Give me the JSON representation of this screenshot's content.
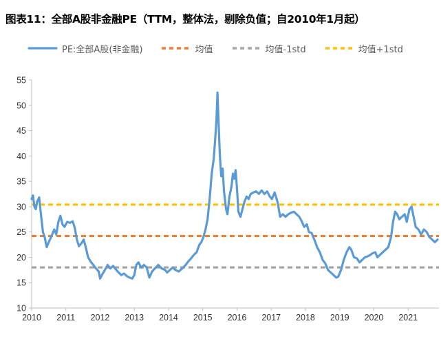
{
  "title": "图表11：全部A股非金融PE（TTM，整体法，剔除负值；自2010年1月起）",
  "legend": {
    "pe": "PE:全部A股(非金融)",
    "mean": "均值",
    "minus_std": "均值-1std",
    "plus_std": "均值+1std"
  },
  "colors": {
    "pe": "#5b9bd5",
    "mean": "#ed7d31",
    "minus_std": "#a5a5a5",
    "plus_std": "#ffc000"
  },
  "chart_data": {
    "type": "line",
    "x_ticks": [
      "2010",
      "2011",
      "2012",
      "2013",
      "2014",
      "2015",
      "2016",
      "2017",
      "2018",
      "2019",
      "2020",
      "2021"
    ],
    "ylim": [
      10,
      55
    ],
    "y_ticks": [
      10,
      15,
      20,
      25,
      30,
      35,
      40,
      45,
      50,
      55
    ],
    "xlim": [
      2010.0,
      2021.9
    ],
    "grid": false,
    "legend_position": "top",
    "reference_lines": [
      {
        "key": "mean",
        "value": 24.2
      },
      {
        "key": "minus_std",
        "value": 18.0
      },
      {
        "key": "plus_std",
        "value": 30.4
      }
    ],
    "series": [
      {
        "key": "pe",
        "name": "PE:全部A股(非金融)",
        "points": [
          [
            2010.0,
            31.5
          ],
          [
            2010.04,
            32.2
          ],
          [
            2010.08,
            30.0
          ],
          [
            2010.12,
            29.5
          ],
          [
            2010.16,
            31.0
          ],
          [
            2010.22,
            31.8
          ],
          [
            2010.28,
            28.0
          ],
          [
            2010.33,
            25.0
          ],
          [
            2010.38,
            24.0
          ],
          [
            2010.44,
            22.0
          ],
          [
            2010.5,
            23.0
          ],
          [
            2010.58,
            24.2
          ],
          [
            2010.66,
            25.5
          ],
          [
            2010.72,
            24.5
          ],
          [
            2010.78,
            27.0
          ],
          [
            2010.84,
            28.2
          ],
          [
            2010.9,
            26.5
          ],
          [
            2010.96,
            26.0
          ],
          [
            2011.04,
            27.0
          ],
          [
            2011.12,
            26.8
          ],
          [
            2011.2,
            27.1
          ],
          [
            2011.26,
            25.8
          ],
          [
            2011.32,
            23.5
          ],
          [
            2011.38,
            22.2
          ],
          [
            2011.46,
            22.8
          ],
          [
            2011.52,
            23.5
          ],
          [
            2011.58,
            22.0
          ],
          [
            2011.65,
            20.0
          ],
          [
            2011.72,
            19.2
          ],
          [
            2011.8,
            18.5
          ],
          [
            2011.88,
            17.8
          ],
          [
            2011.96,
            17.2
          ],
          [
            2012.0,
            15.8
          ],
          [
            2012.06,
            16.6
          ],
          [
            2012.14,
            17.5
          ],
          [
            2012.22,
            18.5
          ],
          [
            2012.3,
            17.8
          ],
          [
            2012.38,
            18.3
          ],
          [
            2012.46,
            17.6
          ],
          [
            2012.54,
            17.0
          ],
          [
            2012.62,
            16.5
          ],
          [
            2012.7,
            16.8
          ],
          [
            2012.78,
            16.3
          ],
          [
            2012.86,
            16.0
          ],
          [
            2012.94,
            15.8
          ],
          [
            2013.0,
            16.5
          ],
          [
            2013.06,
            18.5
          ],
          [
            2013.12,
            19.0
          ],
          [
            2013.2,
            18.0
          ],
          [
            2013.28,
            18.5
          ],
          [
            2013.36,
            18.0
          ],
          [
            2013.44,
            16.0
          ],
          [
            2013.52,
            17.2
          ],
          [
            2013.6,
            17.8
          ],
          [
            2013.7,
            18.5
          ],
          [
            2013.8,
            17.8
          ],
          [
            2013.9,
            17.5
          ],
          [
            2013.96,
            17.0
          ],
          [
            2014.04,
            17.5
          ],
          [
            2014.12,
            18.0
          ],
          [
            2014.2,
            17.5
          ],
          [
            2014.3,
            17.2
          ],
          [
            2014.4,
            17.8
          ],
          [
            2014.5,
            18.5
          ],
          [
            2014.58,
            19.2
          ],
          [
            2014.66,
            19.8
          ],
          [
            2014.74,
            20.5
          ],
          [
            2014.82,
            21.0
          ],
          [
            2014.9,
            22.5
          ],
          [
            2014.96,
            23.0
          ],
          [
            2015.02,
            24.0
          ],
          [
            2015.08,
            25.5
          ],
          [
            2015.14,
            27.5
          ],
          [
            2015.2,
            31.5
          ],
          [
            2015.26,
            36.5
          ],
          [
            2015.32,
            39.5
          ],
          [
            2015.36,
            43.0
          ],
          [
            2015.4,
            47.0
          ],
          [
            2015.43,
            52.5
          ],
          [
            2015.46,
            47.0
          ],
          [
            2015.5,
            40.0
          ],
          [
            2015.54,
            36.0
          ],
          [
            2015.58,
            37.5
          ],
          [
            2015.62,
            33.0
          ],
          [
            2015.68,
            29.5
          ],
          [
            2015.72,
            28.5
          ],
          [
            2015.78,
            32.0
          ],
          [
            2015.84,
            34.0
          ],
          [
            2015.88,
            36.5
          ],
          [
            2015.92,
            35.5
          ],
          [
            2015.96,
            37.2
          ],
          [
            2016.0,
            33.5
          ],
          [
            2016.04,
            29.0
          ],
          [
            2016.1,
            28.0
          ],
          [
            2016.16,
            29.5
          ],
          [
            2016.22,
            31.0
          ],
          [
            2016.28,
            32.0
          ],
          [
            2016.34,
            31.5
          ],
          [
            2016.4,
            32.5
          ],
          [
            2016.48,
            32.8
          ],
          [
            2016.56,
            33.0
          ],
          [
            2016.64,
            32.5
          ],
          [
            2016.72,
            33.2
          ],
          [
            2016.8,
            32.5
          ],
          [
            2016.88,
            33.0
          ],
          [
            2016.96,
            32.0
          ],
          [
            2017.02,
            31.5
          ],
          [
            2017.1,
            32.8
          ],
          [
            2017.18,
            31.0
          ],
          [
            2017.26,
            28.0
          ],
          [
            2017.34,
            28.5
          ],
          [
            2017.42,
            28.0
          ],
          [
            2017.5,
            28.5
          ],
          [
            2017.58,
            28.8
          ],
          [
            2017.66,
            29.0
          ],
          [
            2017.74,
            28.5
          ],
          [
            2017.82,
            28.0
          ],
          [
            2017.9,
            27.0
          ],
          [
            2017.96,
            26.0
          ],
          [
            2018.04,
            26.5
          ],
          [
            2018.1,
            25.0
          ],
          [
            2018.18,
            24.8
          ],
          [
            2018.26,
            23.5
          ],
          [
            2018.34,
            22.0
          ],
          [
            2018.42,
            21.0
          ],
          [
            2018.5,
            19.5
          ],
          [
            2018.58,
            18.8
          ],
          [
            2018.66,
            17.5
          ],
          [
            2018.74,
            17.0
          ],
          [
            2018.82,
            16.5
          ],
          [
            2018.9,
            16.0
          ],
          [
            2018.96,
            16.2
          ],
          [
            2019.04,
            17.5
          ],
          [
            2019.12,
            19.5
          ],
          [
            2019.2,
            21.0
          ],
          [
            2019.28,
            22.0
          ],
          [
            2019.34,
            21.5
          ],
          [
            2019.42,
            20.0
          ],
          [
            2019.5,
            19.8
          ],
          [
            2019.58,
            19.0
          ],
          [
            2019.66,
            19.5
          ],
          [
            2019.74,
            20.0
          ],
          [
            2019.82,
            20.2
          ],
          [
            2019.9,
            20.5
          ],
          [
            2019.96,
            20.8
          ],
          [
            2020.04,
            21.0
          ],
          [
            2020.1,
            20.0
          ],
          [
            2020.18,
            20.5
          ],
          [
            2020.26,
            21.0
          ],
          [
            2020.34,
            21.5
          ],
          [
            2020.42,
            22.0
          ],
          [
            2020.5,
            24.0
          ],
          [
            2020.56,
            27.0
          ],
          [
            2020.62,
            29.0
          ],
          [
            2020.68,
            28.5
          ],
          [
            2020.74,
            27.5
          ],
          [
            2020.82,
            28.0
          ],
          [
            2020.9,
            28.5
          ],
          [
            2020.96,
            27.0
          ],
          [
            2021.04,
            29.5
          ],
          [
            2021.1,
            30.0
          ],
          [
            2021.16,
            28.0
          ],
          [
            2021.22,
            26.0
          ],
          [
            2021.3,
            25.5
          ],
          [
            2021.38,
            24.5
          ],
          [
            2021.46,
            25.5
          ],
          [
            2021.54,
            25.0
          ],
          [
            2021.62,
            24.0
          ],
          [
            2021.7,
            23.5
          ],
          [
            2021.78,
            23.0
          ],
          [
            2021.86,
            23.5
          ]
        ]
      }
    ]
  }
}
